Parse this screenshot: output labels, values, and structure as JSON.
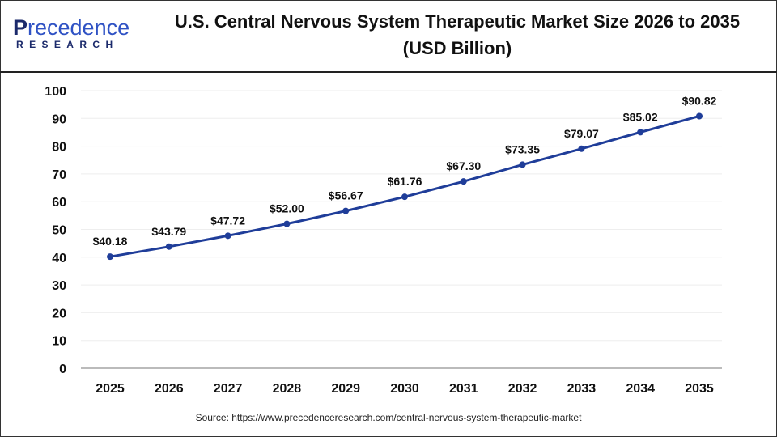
{
  "logo": {
    "text_top": "Precedence",
    "text_bottom": "RESEARCH"
  },
  "title": "U.S. Central Nervous System Therapeutic Market Size 2026 to 2035 (USD Billion)",
  "source": "Source: https://www.precedenceresearch.com/central-nervous-system-therapeutic-market",
  "colors": {
    "line": "#1f3d99",
    "grid": "#eeeeee",
    "axis": "#bbbbbb"
  },
  "chart_data": {
    "type": "line",
    "title": "U.S. Central Nervous System Therapeutic Market Size 2026 to 2035 (USD Billion)",
    "xlabel": "",
    "ylabel": "",
    "ylim": [
      0,
      100
    ],
    "yticks": [
      0,
      10,
      20,
      30,
      40,
      50,
      60,
      70,
      80,
      90,
      100
    ],
    "grid": true,
    "categories": [
      "2025",
      "2026",
      "2027",
      "2028",
      "2029",
      "2030",
      "2031",
      "2032",
      "2033",
      "2034",
      "2035"
    ],
    "values": [
      40.18,
      43.79,
      47.72,
      52.0,
      56.67,
      61.76,
      67.3,
      73.35,
      79.07,
      85.02,
      90.82
    ],
    "labels": [
      "$40.18",
      "$43.79",
      "$47.72",
      "$52.00",
      "$56.67",
      "$61.76",
      "$67.30",
      "$73.35",
      "$79.07",
      "$85.02",
      "$90.82"
    ]
  }
}
